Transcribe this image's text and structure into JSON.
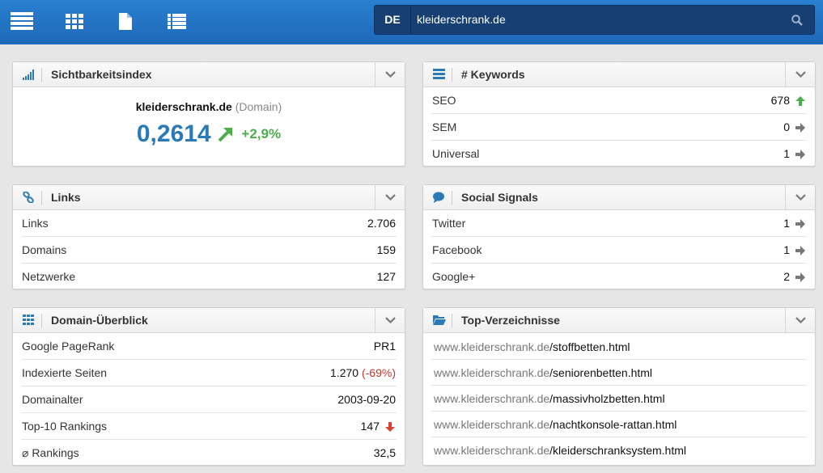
{
  "header": {
    "country": "DE",
    "search": "kleiderschrank.de"
  },
  "visibility": {
    "title": "Sichtbarkeitsindex",
    "domain": "kleiderschrank.de",
    "domain_type": "(Domain)",
    "value": "0,2614",
    "change": "+2,9%"
  },
  "keywords": {
    "title": "# Keywords",
    "rows": [
      {
        "label": "SEO",
        "value": "678",
        "trend": "up"
      },
      {
        "label": "SEM",
        "value": "0",
        "trend": "flat"
      },
      {
        "label": "Universal",
        "value": "1",
        "trend": "flat"
      }
    ]
  },
  "links": {
    "title": "Links",
    "rows": [
      {
        "label": "Links",
        "value": "2.706"
      },
      {
        "label": "Domains",
        "value": "159"
      },
      {
        "label": "Netzwerke",
        "value": "127"
      }
    ]
  },
  "social": {
    "title": "Social Signals",
    "rows": [
      {
        "label": "Twitter",
        "value": "1",
        "trend": "flat"
      },
      {
        "label": "Facebook",
        "value": "1",
        "trend": "flat"
      },
      {
        "label": "Google+",
        "value": "2",
        "trend": "flat"
      }
    ]
  },
  "overview": {
    "title": "Domain-Überblick",
    "rows": [
      {
        "label": "Google PageRank",
        "value": "PR1"
      },
      {
        "label": "Indexierte Seiten",
        "value": "1.270",
        "note": "(-69%)"
      },
      {
        "label": "Domainalter",
        "value": "2003-09-20"
      },
      {
        "label": "Top-10 Rankings",
        "value": "147",
        "trend": "down"
      },
      {
        "label": "⌀ Rankings",
        "value": "32,5"
      }
    ]
  },
  "directories": {
    "title": "Top-Verzeichnisse",
    "rows": [
      {
        "host": "www.kleiderschrank.de",
        "path": "/stoffbetten.html"
      },
      {
        "host": "www.kleiderschrank.de",
        "path": "/seniorenbetten.html"
      },
      {
        "host": "www.kleiderschrank.de",
        "path": "/massivholzbetten.html"
      },
      {
        "host": "www.kleiderschrank.de",
        "path": "/nachtkonsole-rattan.html"
      },
      {
        "host": "www.kleiderschrank.de",
        "path": "/kleiderschranksystem.html"
      }
    ]
  }
}
